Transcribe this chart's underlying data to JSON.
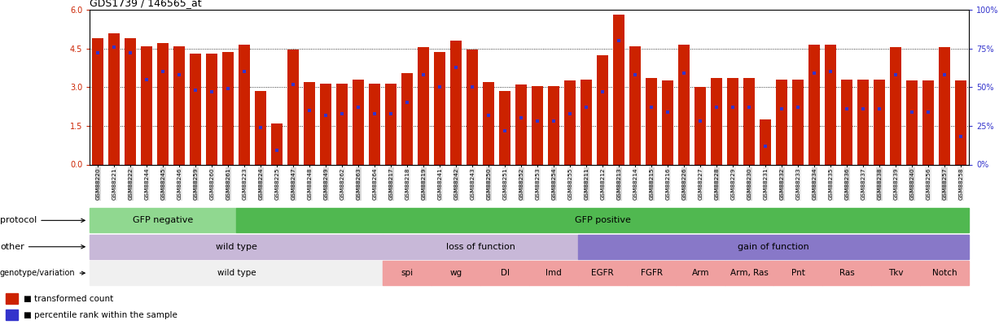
{
  "title": "GDS1739 / 146565_at",
  "bar_color": "#cc2200",
  "dot_color": "#3333cc",
  "ylim_left": [
    0,
    6
  ],
  "yticks_left": [
    0,
    1.5,
    3.0,
    4.5,
    6
  ],
  "ylim_right": [
    0,
    100
  ],
  "yticks_right": [
    0,
    25,
    50,
    75,
    100
  ],
  "ytick_labels_right": [
    "0%",
    "25%",
    "50%",
    "75%",
    "100%"
  ],
  "samples": [
    "GSM88220",
    "GSM88221",
    "GSM88222",
    "GSM88244",
    "GSM88245",
    "GSM88246",
    "GSM88259",
    "GSM88260",
    "GSM88261",
    "GSM88223",
    "GSM88224",
    "GSM88225",
    "GSM88247",
    "GSM88248",
    "GSM88249",
    "GSM88262",
    "GSM88263",
    "GSM88264",
    "GSM88217",
    "GSM88218",
    "GSM88219",
    "GSM88241",
    "GSM88242",
    "GSM88243",
    "GSM88250",
    "GSM88251",
    "GSM88252",
    "GSM88253",
    "GSM88254",
    "GSM88255",
    "GSM88211",
    "GSM88212",
    "GSM88213",
    "GSM88214",
    "GSM88215",
    "GSM88216",
    "GSM88226",
    "GSM88227",
    "GSM88228",
    "GSM88229",
    "GSM88230",
    "GSM88231",
    "GSM88232",
    "GSM88233",
    "GSM88234",
    "GSM88235",
    "GSM88236",
    "GSM88237",
    "GSM88238",
    "GSM88239",
    "GSM88240",
    "GSM88256",
    "GSM88257",
    "GSM88258"
  ],
  "bar_values": [
    4.9,
    5.1,
    4.9,
    4.6,
    4.7,
    4.6,
    4.3,
    4.3,
    4.35,
    4.65,
    2.85,
    1.6,
    4.45,
    3.2,
    3.15,
    3.15,
    3.3,
    3.15,
    3.15,
    3.55,
    4.55,
    4.35,
    4.8,
    4.45,
    3.2,
    2.85,
    3.1,
    3.05,
    3.05,
    3.25,
    3.3,
    4.25,
    5.8,
    4.6,
    3.35,
    3.25,
    4.65,
    3.0,
    3.35,
    3.35,
    3.35,
    1.75,
    3.3,
    3.3,
    4.65,
    4.65,
    3.3,
    3.3,
    3.3,
    4.55,
    3.25,
    3.25,
    4.55,
    3.25
  ],
  "dot_values_pct": [
    72,
    76,
    72,
    55,
    60,
    58,
    48,
    47,
    49,
    60,
    24,
    9,
    52,
    35,
    32,
    33,
    37,
    33,
    33,
    40,
    58,
    50,
    63,
    50,
    32,
    22,
    30,
    28,
    28,
    33,
    37,
    47,
    80,
    58,
    37,
    34,
    59,
    28,
    37,
    37,
    37,
    12,
    36,
    37,
    59,
    60,
    36,
    36,
    36,
    58,
    34,
    34,
    58,
    18
  ],
  "protocol_groups": [
    {
      "label": "GFP negative",
      "start": 0,
      "end": 9,
      "color": "#90d890"
    },
    {
      "label": "GFP positive",
      "start": 9,
      "end": 54,
      "color": "#50b850"
    }
  ],
  "other_groups": [
    {
      "label": "wild type",
      "start": 0,
      "end": 18,
      "color": "#c8b8d8"
    },
    {
      "label": "loss of function",
      "start": 18,
      "end": 30,
      "color": "#c8b8d8"
    },
    {
      "label": "gain of function",
      "start": 30,
      "end": 54,
      "color": "#8878c8"
    }
  ],
  "genotype_groups": [
    {
      "label": "wild type",
      "start": 0,
      "end": 18,
      "color": "#f0f0f0"
    },
    {
      "label": "spi",
      "start": 18,
      "end": 21,
      "color": "#f0a0a0"
    },
    {
      "label": "wg",
      "start": 21,
      "end": 24,
      "color": "#f0a0a0"
    },
    {
      "label": "Dl",
      "start": 24,
      "end": 27,
      "color": "#f0a0a0"
    },
    {
      "label": "Imd",
      "start": 27,
      "end": 30,
      "color": "#f0a0a0"
    },
    {
      "label": "EGFR",
      "start": 30,
      "end": 33,
      "color": "#f0a0a0"
    },
    {
      "label": "FGFR",
      "start": 33,
      "end": 36,
      "color": "#f0a0a0"
    },
    {
      "label": "Arm",
      "start": 36,
      "end": 39,
      "color": "#f0a0a0"
    },
    {
      "label": "Arm, Ras",
      "start": 39,
      "end": 42,
      "color": "#f0a0a0"
    },
    {
      "label": "Pnt",
      "start": 42,
      "end": 45,
      "color": "#f0a0a0"
    },
    {
      "label": "Ras",
      "start": 45,
      "end": 48,
      "color": "#f0a0a0"
    },
    {
      "label": "Tkv",
      "start": 48,
      "end": 51,
      "color": "#f0a0a0"
    },
    {
      "label": "Notch",
      "start": 51,
      "end": 54,
      "color": "#f0a0a0"
    }
  ]
}
